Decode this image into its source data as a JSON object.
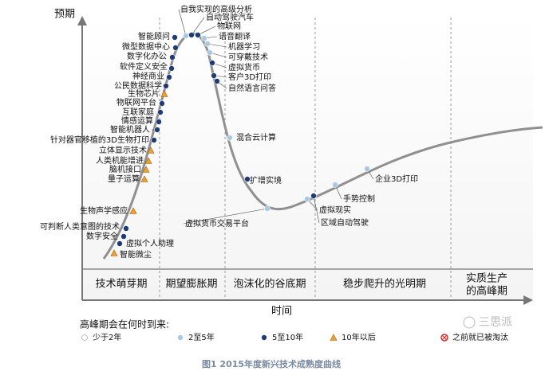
{
  "axes": {
    "y_label": "预期",
    "x_label": "时间"
  },
  "phases": [
    [
      "技术萌芽期"
    ],
    [
      "期望膨胀期"
    ],
    [
      "泡沫化的谷底期"
    ],
    [
      "稳步爬升的光明期"
    ],
    [
      "实质生产",
      "的高峰期"
    ]
  ],
  "legend": {
    "title": "高峰期会在何时到来:",
    "items": [
      {
        "label": "少于2年",
        "symbol": "circle",
        "color": "#ffffff",
        "technologies": []
      },
      {
        "label": "2至5年",
        "symbol": "circle",
        "color": "#aac8e6",
        "technologies": [
          "自我实现的高级分析",
          "语音翻译",
          "机器学习",
          "可穿戴技术",
          "混合云计算",
          "虚拟货币交易平台",
          "虚拟现实",
          "手势控制",
          "企业3D打印"
        ]
      },
      {
        "label": "5至10年",
        "symbol": "circle",
        "color": "#1f3b73",
        "technologies": [
          "智能顾问",
          "微型数据中心",
          "数字化办公",
          "软件定义安全",
          "神经商业",
          "公民数据科学",
          "物联网平台",
          "互联家庭",
          "情感运算",
          "智能机器人",
          "针对器官移植的3D生物打印",
          "可判断人类意图的技术",
          "数字安全",
          "虚拟个人助理",
          "自动驾驶汽车",
          "物联网",
          "虚拟货币",
          "客户3D打印",
          "自然语言问答",
          "扩增实境",
          "区域自动驾驶"
        ]
      },
      {
        "label": "10年以后",
        "symbol": "triangle",
        "color": "#f0a030",
        "technologies": [
          "生物芯片",
          "立体显示技术",
          "人类机能增进",
          "脑机接口",
          "量子运算",
          "生物声学感应",
          "智能微尘"
        ]
      },
      {
        "label": "之前就已被淘汰",
        "symbol": "obsolete",
        "color": "#d03030",
        "technologies": []
      }
    ]
  },
  "watermark": "三思派",
  "caption": "图1  2015年度新兴技术成熟度曲线"
}
